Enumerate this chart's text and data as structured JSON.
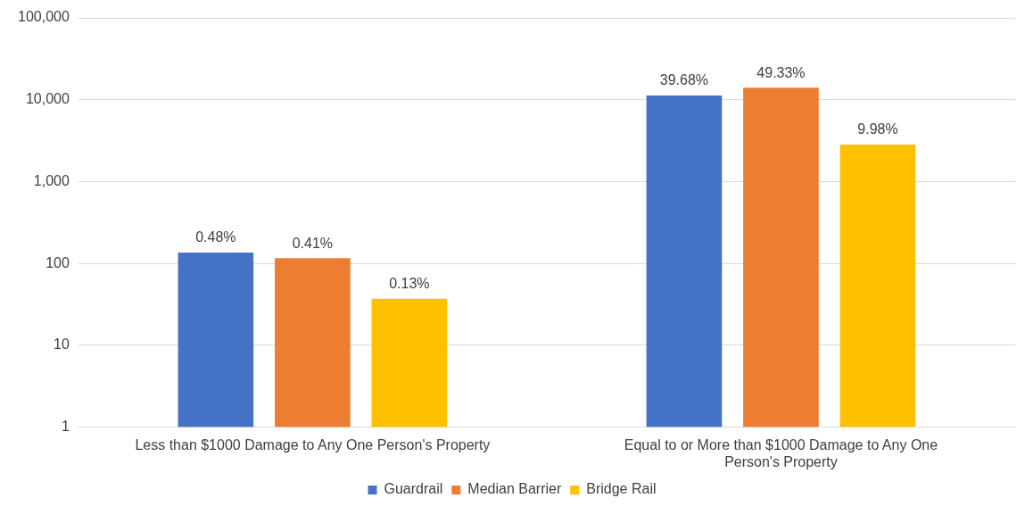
{
  "chart_data": {
    "type": "bar",
    "categories": [
      "Less than $1000 Damage to Any One Person's Property",
      "Equal to or More than $1000 Damage to Any One Person's Property"
    ],
    "series": [
      {
        "name": "Guardrail",
        "color": "#4472c4",
        "values": [
          136,
          11270
        ]
      },
      {
        "name": "Median Barrier",
        "color": "#ed7d31",
        "values": [
          116,
          14010
        ]
      },
      {
        "name": "Bridge Rail",
        "color": "#ffc000",
        "values": [
          37,
          2834
        ]
      }
    ],
    "annotations": [
      "0.48%",
      "0.41%",
      "0.13%",
      "39.68%",
      "49.33%",
      "9.98%"
    ],
    "log": "y",
    "ylim": [
      1,
      100000
    ],
    "yticks": [
      1,
      10,
      {
        "value": 100,
        "label": "100"
      },
      {
        "value": 1000,
        "label": "1,000"
      },
      {
        "value": 10000,
        "label": "10,000"
      },
      {
        "value": 100000,
        "label": "100,000"
      }
    ],
    "grid": "y",
    "legend": "bottom"
  }
}
